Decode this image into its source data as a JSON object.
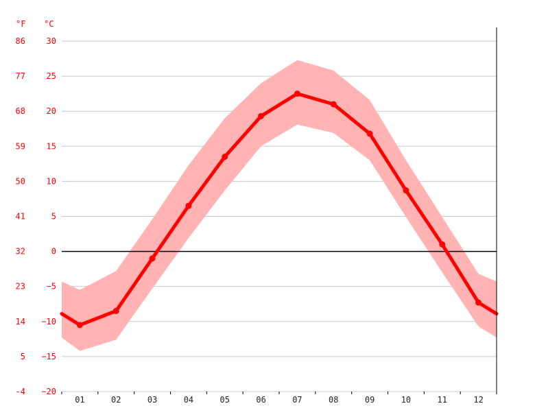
{
  "chart_data": {
    "type": "line",
    "units": {
      "left": "°F",
      "right": "°C"
    },
    "categories": [
      "01",
      "02",
      "03",
      "04",
      "05",
      "06",
      "07",
      "08",
      "09",
      "10",
      "11",
      "12"
    ],
    "ylim": [
      -20,
      30
    ],
    "yticks_c": [
      30,
      25,
      20,
      15,
      10,
      5,
      0,
      -5,
      -10,
      -15,
      -20
    ],
    "yticks_f": [
      "86",
      "77",
      "68",
      "59",
      "50",
      "41",
      "32",
      "23",
      "14",
      "5",
      "-4"
    ],
    "grid": true,
    "series": [
      {
        "values": [
          -10.5,
          -8.5,
          -1.0,
          6.5,
          13.5,
          19.3,
          22.5,
          21.0,
          16.8,
          8.7,
          1.0,
          -7.3
        ]
      },
      {
        "values": [
          -5.5,
          -2.8,
          4.6,
          12.3,
          19.0,
          24.0,
          27.3,
          25.8,
          21.6,
          13.0,
          4.9,
          -3.2
        ]
      },
      {
        "values": [
          -14.2,
          -12.6,
          -5.3,
          1.9,
          8.7,
          15.0,
          18.1,
          16.9,
          13.0,
          4.9,
          -3.0,
          -10.7
        ]
      }
    ],
    "edge_values": {
      "avg": [
        -8.9,
        -8.9
      ],
      "max": [
        -4.3,
        -4.3
      ],
      "min": [
        -12.3,
        -12.3
      ]
    },
    "colors": {
      "line": "#ff0000",
      "band": "#ffb3b3",
      "zero_line": "#000000",
      "grid": "#c8c8c8"
    }
  }
}
